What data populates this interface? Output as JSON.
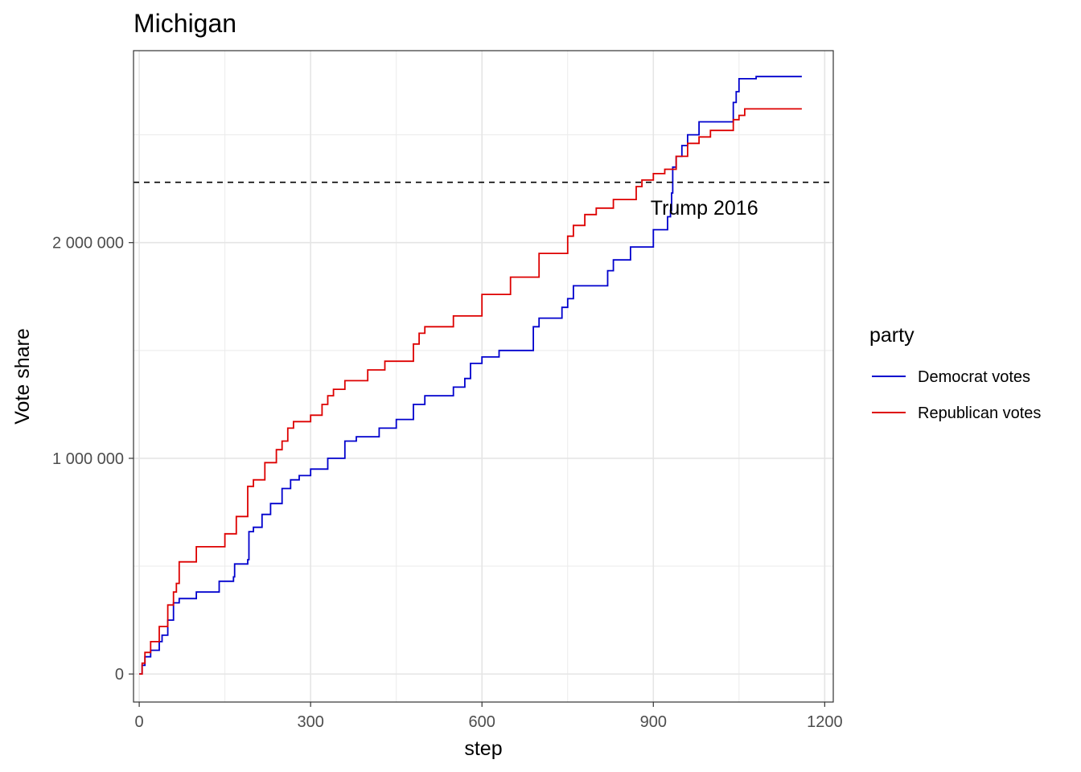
{
  "chart_data": {
    "type": "line",
    "title": "Michigan",
    "xlabel": "step",
    "ylabel": "Vote share",
    "xlim": [
      -10,
      1215
    ],
    "ylim": [
      -130000,
      2890000
    ],
    "x_ticks": [
      0,
      300,
      600,
      900,
      1200
    ],
    "x_tick_labels": [
      "0",
      "300",
      "600",
      "900",
      "1200"
    ],
    "y_ticks": [
      0,
      1000000,
      2000000
    ],
    "y_tick_labels": [
      "0",
      "1 000 000",
      "2 000 000"
    ],
    "grid": true,
    "legend": {
      "title": "party",
      "position": "right",
      "entries": [
        {
          "name": "Democrat votes",
          "color": "#0000cd"
        },
        {
          "name": "Republican votes",
          "color": "#dd0000"
        }
      ]
    },
    "reference_line": {
      "y": 2279543,
      "style": "dashed",
      "color": "#000000"
    },
    "annotation": {
      "text": "Trump 2016",
      "x": 895,
      "y": 2130000
    },
    "series": [
      {
        "name": "Democrat votes",
        "color": "#0000cd",
        "x": [
          0,
          5,
          10,
          20,
          35,
          40,
          50,
          60,
          70,
          100,
          140,
          165,
          167,
          190,
          192,
          200,
          215,
          230,
          250,
          265,
          280,
          300,
          330,
          360,
          380,
          420,
          450,
          480,
          500,
          550,
          570,
          580,
          600,
          630,
          690,
          700,
          740,
          750,
          760,
          820,
          830,
          860,
          900,
          925,
          930,
          932,
          934,
          940,
          950,
          960,
          980,
          1040,
          1045,
          1050,
          1080,
          1160
        ],
        "y": [
          0,
          40000,
          80000,
          110000,
          150000,
          180000,
          250000,
          330000,
          350000,
          380000,
          430000,
          450000,
          510000,
          530000,
          660000,
          680000,
          740000,
          790000,
          860000,
          900000,
          920000,
          950000,
          1000000,
          1080000,
          1100000,
          1140000,
          1180000,
          1250000,
          1290000,
          1330000,
          1370000,
          1440000,
          1470000,
          1500000,
          1610000,
          1650000,
          1700000,
          1740000,
          1800000,
          1870000,
          1920000,
          1980000,
          2060000,
          2120000,
          2150000,
          2230000,
          2350000,
          2400000,
          2450000,
          2500000,
          2560000,
          2650000,
          2700000,
          2760000,
          2770000,
          2770000
        ]
      },
      {
        "name": "Republican votes",
        "color": "#dd0000",
        "x": [
          0,
          5,
          10,
          20,
          35,
          50,
          60,
          65,
          70,
          100,
          150,
          170,
          190,
          200,
          220,
          240,
          250,
          260,
          270,
          300,
          320,
          330,
          340,
          360,
          400,
          430,
          480,
          490,
          500,
          550,
          600,
          650,
          700,
          750,
          760,
          780,
          800,
          830,
          870,
          880,
          900,
          920,
          940,
          960,
          980,
          1000,
          1040,
          1050,
          1060,
          1160
        ],
        "y": [
          0,
          50000,
          100000,
          150000,
          220000,
          320000,
          380000,
          420000,
          520000,
          590000,
          650000,
          730000,
          870000,
          900000,
          980000,
          1040000,
          1080000,
          1140000,
          1170000,
          1200000,
          1250000,
          1290000,
          1320000,
          1360000,
          1410000,
          1450000,
          1530000,
          1580000,
          1610000,
          1660000,
          1760000,
          1840000,
          1950000,
          2030000,
          2080000,
          2130000,
          2160000,
          2200000,
          2260000,
          2290000,
          2320000,
          2340000,
          2400000,
          2460000,
          2490000,
          2520000,
          2570000,
          2590000,
          2620000,
          2620000
        ]
      }
    ]
  }
}
